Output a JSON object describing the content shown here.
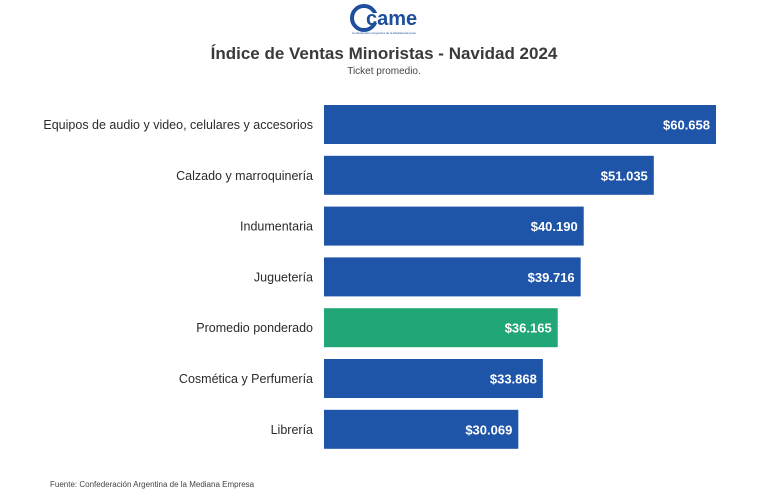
{
  "logo": {
    "text": "came",
    "subtitle": "Confederación Argentina de la Mediana Empresa"
  },
  "colors": {
    "bar": "#1f55a8",
    "highlight": "#21a775",
    "logo": "#1f4e9c"
  },
  "chart_data": {
    "type": "bar",
    "orientation": "horizontal",
    "title": "Índice de Ventas Minoristas - Navidad 2024",
    "subtitle": "Ticket promedio.",
    "categories": [
      "Equipos de audio y video, celulares y accesorios",
      "Calzado y marroquinería",
      "Indumentaria",
      "Juguetería",
      "Promedio ponderado",
      "Cosmética y Perfumería",
      "Librería"
    ],
    "values": [
      60658,
      51035,
      40190,
      39716,
      36165,
      33868,
      30069
    ],
    "value_labels": [
      "$60.658",
      "$51.035",
      "$40.190",
      "$39.716",
      "$36.165",
      "$33.868",
      "$30.069"
    ],
    "highlight_index": 4,
    "grid": false,
    "legend": "none"
  },
  "source": "Fuente: Confederación Argentina de la Mediana Empresa"
}
